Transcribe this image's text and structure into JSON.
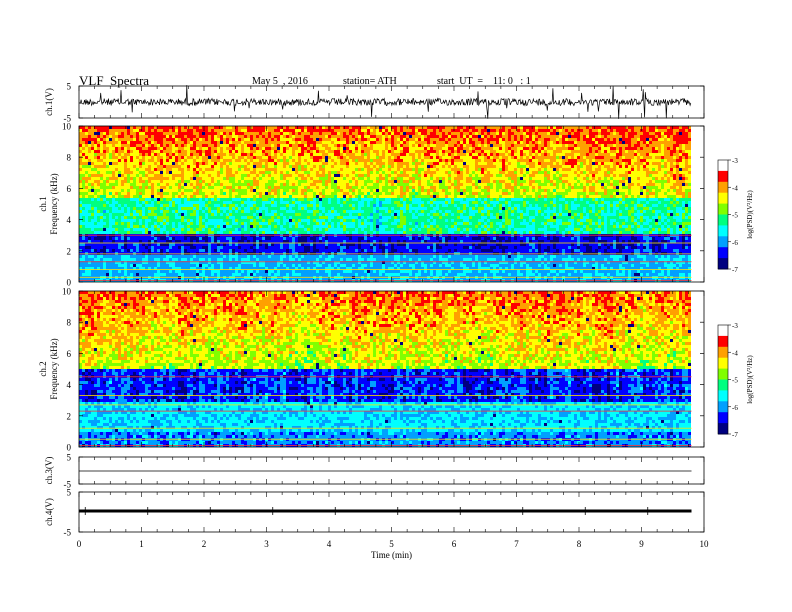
{
  "header": {
    "title": "VLF  Spectra",
    "date": "May 5  , 2016",
    "station": "station= ATH",
    "start": "start  UT  =    11: 0   : 1"
  },
  "chart_data": [
    {
      "type": "line",
      "name": "ch1-waveform",
      "ylabel": "ch.1(V)",
      "ylim": [
        -5,
        5
      ],
      "yticks": [
        "5",
        "-5"
      ],
      "xlim": [
        0,
        10
      ],
      "grid": false
    },
    {
      "type": "heatmap",
      "name": "ch1-spectrogram",
      "ylabel": "ch.1\nFrequency  (kHz)",
      "ylim": [
        0,
        10
      ],
      "yticks": [
        "0",
        "2",
        "4",
        "6",
        "8",
        "10"
      ],
      "xlim": [
        0,
        10
      ],
      "data_end_min": 9.8,
      "colorbar": {
        "label": "log(PSD)(V²/Hz)",
        "range": [
          -7,
          -3
        ],
        "ticks": [
          "-3",
          "-4",
          "-5",
          "-6",
          "-7"
        ]
      }
    },
    {
      "type": "heatmap",
      "name": "ch2-spectrogram",
      "ylabel": "ch.2\nFrequency  (kHz)",
      "ylim": [
        0,
        10
      ],
      "yticks": [
        "0",
        "2",
        "4",
        "6",
        "8",
        "10"
      ],
      "xlim": [
        0,
        10
      ],
      "data_end_min": 9.8,
      "colorbar": {
        "label": "log(PSD)(V²/Hz)",
        "range": [
          -7,
          -3
        ],
        "ticks": [
          "-3",
          "-4",
          "-5",
          "-6",
          "-7"
        ]
      }
    },
    {
      "type": "line",
      "name": "ch3-waveform",
      "ylabel": "ch.3(V)",
      "ylim": [
        -5,
        5
      ],
      "yticks": [
        "5",
        "-5"
      ],
      "xlim": [
        0,
        10
      ]
    },
    {
      "type": "line",
      "name": "ch4-waveform",
      "ylabel": "ch.4(V)",
      "ylim": [
        -5,
        5
      ],
      "yticks": [
        "5",
        "-5"
      ],
      "xlim": [
        0,
        10
      ],
      "xlabel": "Time  (min)",
      "xticks": [
        "0",
        "1",
        "2",
        "3",
        "4",
        "5",
        "6",
        "7",
        "8",
        "9",
        "10"
      ]
    }
  ],
  "colors": {
    "colormap": [
      "#000080",
      "#0000ff",
      "#00a0ff",
      "#00ffff",
      "#00ff80",
      "#80ff00",
      "#ffff00",
      "#ffa000",
      "#ff0000",
      "#ffffff"
    ],
    "trace": "#000000",
    "axes": "#000000"
  }
}
